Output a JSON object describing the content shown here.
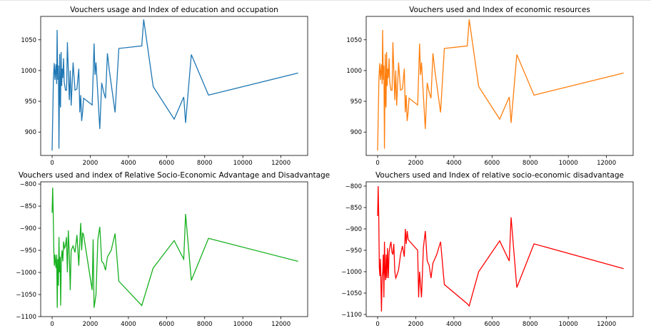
{
  "chart_data": [
    {
      "type": "line",
      "title": "Vouchers usage and Index of education and occupation",
      "color": "#1f77b4",
      "xlim": [
        -600,
        13400
      ],
      "ylim": [
        862,
        1088
      ],
      "xticks": [
        0,
        2000,
        4000,
        6000,
        8000,
        10000,
        12000
      ],
      "yticks": [
        900,
        950,
        1000,
        1050
      ],
      "series": [
        {
          "points": [
            [
              0,
              870
            ],
            [
              70,
              990
            ],
            [
              110,
              1012
            ],
            [
              150,
              985
            ],
            [
              200,
              1010
            ],
            [
              240,
              978
            ],
            [
              260,
              1066
            ],
            [
              300,
              985
            ],
            [
              330,
              1008
            ],
            [
              360,
              873
            ],
            [
              400,
              1027
            ],
            [
              420,
              950
            ],
            [
              440,
              940
            ],
            [
              470,
              1030
            ],
            [
              500,
              975
            ],
            [
              530,
              1003
            ],
            [
              560,
              988
            ],
            [
              600,
              1020
            ],
            [
              630,
              982
            ],
            [
              700,
              968
            ],
            [
              760,
              968
            ],
            [
              800,
              1046
            ],
            [
              900,
              952
            ],
            [
              950,
              1000
            ],
            [
              1000,
              943
            ],
            [
              1100,
              1013
            ],
            [
              1200,
              968
            ],
            [
              1300,
              970
            ],
            [
              1400,
              1003
            ],
            [
              1450,
              932
            ],
            [
              1500,
              960
            ],
            [
              1550,
              918
            ],
            [
              1600,
              933
            ],
            [
              1650,
              955
            ],
            [
              2100,
              944
            ],
            [
              2150,
              993
            ],
            [
              2200,
              1044
            ],
            [
              2250,
              993
            ],
            [
              2300,
              1013
            ],
            [
              2400,
              960
            ],
            [
              2500,
              905
            ],
            [
              2600,
              980
            ],
            [
              2700,
              965
            ],
            [
              2800,
              955
            ],
            [
              2900,
              1028
            ],
            [
              3000,
              1000
            ],
            [
              3300,
              932
            ],
            [
              3500,
              1036
            ],
            [
              4700,
              1040
            ],
            [
              4800,
              1083
            ],
            [
              5300,
              974
            ],
            [
              6400,
              921
            ],
            [
              6900,
              957
            ],
            [
              7000,
              915
            ],
            [
              7300,
              1026
            ],
            [
              8200,
              960
            ],
            [
              12900,
              996
            ]
          ]
        }
      ]
    },
    {
      "type": "line",
      "title": "Vouchers used and Index of economic resources",
      "color": "#ff7f0e",
      "xlim": [
        -600,
        13400
      ],
      "ylim": [
        862,
        1088
      ],
      "xticks": [
        0,
        2000,
        4000,
        6000,
        8000,
        10000,
        12000
      ],
      "yticks": [
        900,
        950,
        1000,
        1050
      ],
      "series": [
        {
          "points": [
            [
              0,
              870
            ],
            [
              70,
              990
            ],
            [
              110,
              1012
            ],
            [
              150,
              985
            ],
            [
              200,
              1010
            ],
            [
              240,
              978
            ],
            [
              260,
              1066
            ],
            [
              300,
              985
            ],
            [
              330,
              1008
            ],
            [
              360,
              873
            ],
            [
              400,
              1027
            ],
            [
              420,
              950
            ],
            [
              440,
              940
            ],
            [
              470,
              1030
            ],
            [
              500,
              975
            ],
            [
              530,
              1003
            ],
            [
              560,
              988
            ],
            [
              600,
              1020
            ],
            [
              630,
              982
            ],
            [
              700,
              968
            ],
            [
              760,
              968
            ],
            [
              800,
              1046
            ],
            [
              900,
              952
            ],
            [
              950,
              1000
            ],
            [
              1000,
              943
            ],
            [
              1100,
              1013
            ],
            [
              1200,
              968
            ],
            [
              1300,
              970
            ],
            [
              1400,
              1003
            ],
            [
              1450,
              932
            ],
            [
              1500,
              960
            ],
            [
              1550,
              918
            ],
            [
              1600,
              933
            ],
            [
              1650,
              955
            ],
            [
              2100,
              944
            ],
            [
              2150,
              993
            ],
            [
              2200,
              1044
            ],
            [
              2250,
              993
            ],
            [
              2300,
              1013
            ],
            [
              2400,
              960
            ],
            [
              2500,
              905
            ],
            [
              2600,
              980
            ],
            [
              2700,
              965
            ],
            [
              2800,
              955
            ],
            [
              2900,
              1028
            ],
            [
              3000,
              1000
            ],
            [
              3300,
              932
            ],
            [
              3500,
              1036
            ],
            [
              4700,
              1040
            ],
            [
              4800,
              1083
            ],
            [
              5300,
              974
            ],
            [
              6400,
              921
            ],
            [
              6900,
              957
            ],
            [
              7000,
              915
            ],
            [
              7300,
              1026
            ],
            [
              8200,
              960
            ],
            [
              12900,
              996
            ]
          ]
        }
      ]
    },
    {
      "type": "line",
      "title": "Vouchers used and index of Relative Socio-Economic Advantage and Disadvantage",
      "color": "#17b01f",
      "xlim": [
        -600,
        13400
      ],
      "ylim": [
        -1100,
        -795
      ],
      "xticks": [
        0,
        2000,
        4000,
        6000,
        8000,
        10000,
        12000
      ],
      "yticks": [
        -800,
        -850,
        -900,
        -950,
        -1000,
        -1050,
        -1100
      ],
      "series": [
        {
          "points": [
            [
              0,
              -865
            ],
            [
              30,
              -808
            ],
            [
              60,
              -870
            ],
            [
              90,
              -950
            ],
            [
              120,
              -985
            ],
            [
              150,
              -960
            ],
            [
              200,
              -990
            ],
            [
              240,
              -960
            ],
            [
              270,
              -1080
            ],
            [
              300,
              -970
            ],
            [
              330,
              -1030
            ],
            [
              360,
              -920
            ],
            [
              390,
              -1000
            ],
            [
              420,
              -965
            ],
            [
              450,
              -1075
            ],
            [
              480,
              -970
            ],
            [
              520,
              -950
            ],
            [
              560,
              -975
            ],
            [
              600,
              -930
            ],
            [
              650,
              -945
            ],
            [
              700,
              -940
            ],
            [
              750,
              -920
            ],
            [
              800,
              -1000
            ],
            [
              850,
              -905
            ],
            [
              900,
              -960
            ],
            [
              950,
              -1040
            ],
            [
              1000,
              -950
            ],
            [
              1100,
              -940
            ],
            [
              1200,
              -955
            ],
            [
              1300,
              -915
            ],
            [
              1400,
              -985
            ],
            [
              1450,
              -930
            ],
            [
              1500,
              -888
            ],
            [
              1550,
              -950
            ],
            [
              1600,
              -910
            ],
            [
              1650,
              -915
            ],
            [
              2100,
              -1040
            ],
            [
              2150,
              -925
            ],
            [
              2200,
              -1080
            ],
            [
              2300,
              -1050
            ],
            [
              2400,
              -925
            ],
            [
              2500,
              -897
            ],
            [
              2600,
              -975
            ],
            [
              2700,
              -980
            ],
            [
              2800,
              -995
            ],
            [
              2900,
              -965
            ],
            [
              3100,
              -950
            ],
            [
              3300,
              -912
            ],
            [
              3500,
              -1020
            ],
            [
              4700,
              -1075
            ],
            [
              5300,
              -990
            ],
            [
              6400,
              -928
            ],
            [
              6900,
              -970
            ],
            [
              7000,
              -868
            ],
            [
              7300,
              -1018
            ],
            [
              8200,
              -923
            ],
            [
              12900,
              -975
            ]
          ]
        }
      ]
    },
    {
      "type": "line",
      "title": "Vouchers used and Index of relative socio-economic disadvantage",
      "color": "#ff0000",
      "xlim": [
        -600,
        13400
      ],
      "ylim": [
        -1105,
        -790
      ],
      "xticks": [
        0,
        2000,
        4000,
        6000,
        8000,
        10000,
        12000
      ],
      "yticks": [
        -800,
        -850,
        -900,
        -950,
        -1000,
        -1050,
        -1100
      ],
      "series": [
        {
          "points": [
            [
              0,
              -870
            ],
            [
              30,
              -800
            ],
            [
              60,
              -870
            ],
            [
              90,
              -990
            ],
            [
              120,
              -1010
            ],
            [
              150,
              -970
            ],
            [
              200,
              -1093
            ],
            [
              240,
              -1010
            ],
            [
              270,
              -1000
            ],
            [
              300,
              -960
            ],
            [
              330,
              -1060
            ],
            [
              360,
              -930
            ],
            [
              390,
              -1000
            ],
            [
              420,
              -1020
            ],
            [
              450,
              -960
            ],
            [
              480,
              -1015
            ],
            [
              520,
              -945
            ],
            [
              560,
              -1015
            ],
            [
              600,
              -955
            ],
            [
              650,
              -940
            ],
            [
              700,
              -930
            ],
            [
              750,
              -955
            ],
            [
              800,
              -960
            ],
            [
              850,
              -935
            ],
            [
              900,
              -1000
            ],
            [
              950,
              -1015
            ],
            [
              1000,
              -1010
            ],
            [
              1100,
              -995
            ],
            [
              1200,
              -960
            ],
            [
              1300,
              -940
            ],
            [
              1400,
              -965
            ],
            [
              1450,
              -900
            ],
            [
              1500,
              -935
            ],
            [
              1550,
              -905
            ],
            [
              1600,
              -925
            ],
            [
              2100,
              -950
            ],
            [
              2150,
              -1060
            ],
            [
              2200,
              -1000
            ],
            [
              2300,
              -1060
            ],
            [
              2400,
              -945
            ],
            [
              2500,
              -905
            ],
            [
              2600,
              -975
            ],
            [
              2700,
              -985
            ],
            [
              2800,
              -1015
            ],
            [
              2900,
              -980
            ],
            [
              3100,
              -960
            ],
            [
              3300,
              -930
            ],
            [
              3500,
              -1030
            ],
            [
              4700,
              -1075
            ],
            [
              4800,
              -1080
            ],
            [
              5300,
              -1000
            ],
            [
              6400,
              -928
            ],
            [
              6900,
              -975
            ],
            [
              7000,
              -873
            ],
            [
              7300,
              -1037
            ],
            [
              8200,
              -935
            ],
            [
              12900,
              -993
            ]
          ]
        }
      ]
    }
  ]
}
